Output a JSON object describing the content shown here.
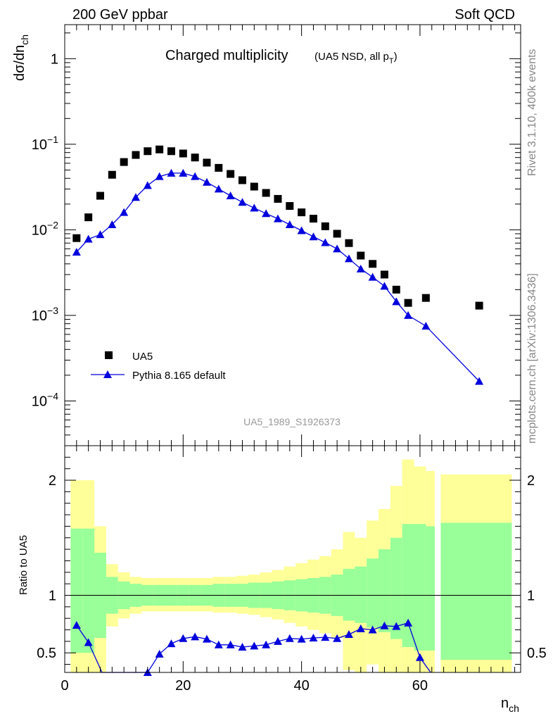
{
  "header": {
    "left": "200 GeV ppbar",
    "right": "Soft QCD"
  },
  "side": {
    "top": "Rivet 3.1.10,  400k events",
    "bottom": "mcplots.cern.ch [arXiv:1306.3436]"
  },
  "chart_data": [
    {
      "type": "scatter",
      "title": "Charged multiplicity",
      "subtitle_main": "(UA5 NSD, all p",
      "subtitle_sub": "T",
      "subtitle_end": ")",
      "ylabel_main": "dσ/dn",
      "ylabel_sub": "ch",
      "yscale": "log",
      "ylim": [
        3e-05,
        2.5
      ],
      "xlim": [
        0,
        77
      ],
      "yticks": [
        {
          "v": 1,
          "label": "1",
          "exp": ""
        },
        {
          "v": 0.1,
          "label": "10",
          "exp": "−1"
        },
        {
          "v": 0.01,
          "label": "10",
          "exp": "−2"
        },
        {
          "v": 0.001,
          "label": "10",
          "exp": "−3"
        },
        {
          "v": 0.0001,
          "label": "10",
          "exp": "−4"
        }
      ],
      "reference": "UA5_1989_S1926373",
      "legend": [
        {
          "name": "UA5",
          "marker": "square",
          "color": "#000000"
        },
        {
          "name": "Pythia 8.165 default",
          "marker": "triangle",
          "color": "#0000dd"
        }
      ],
      "series": [
        {
          "name": "UA5",
          "x": [
            2,
            4,
            6,
            8,
            10,
            12,
            14,
            16,
            18,
            20,
            22,
            24,
            26,
            28,
            30,
            32,
            34,
            36,
            38,
            40,
            42,
            44,
            46,
            48,
            50,
            52,
            54,
            56,
            58,
            61,
            70
          ],
          "y": [
            0.008,
            0.014,
            0.025,
            0.044,
            0.062,
            0.075,
            0.083,
            0.087,
            0.083,
            0.078,
            0.07,
            0.061,
            0.053,
            0.045,
            0.038,
            0.032,
            0.027,
            0.023,
            0.019,
            0.016,
            0.0135,
            0.011,
            0.009,
            0.007,
            0.005,
            0.004,
            0.003,
            0.002,
            0.0014,
            0.0016,
            0.0013
          ]
        },
        {
          "name": "Pythia 8.165 default",
          "x": [
            2,
            4,
            6,
            8,
            10,
            12,
            14,
            16,
            18,
            20,
            22,
            24,
            26,
            28,
            30,
            32,
            34,
            36,
            38,
            40,
            42,
            44,
            46,
            48,
            50,
            52,
            54,
            56,
            58,
            61,
            70
          ],
          "y": [
            0.0055,
            0.0078,
            0.0088,
            0.0115,
            0.016,
            0.024,
            0.033,
            0.042,
            0.046,
            0.046,
            0.042,
            0.036,
            0.03,
            0.025,
            0.021,
            0.018,
            0.0155,
            0.0135,
            0.0115,
            0.0098,
            0.0083,
            0.0071,
            0.006,
            0.0046,
            0.0035,
            0.0028,
            0.0022,
            0.00145,
            0.001,
            0.00075,
            0.00017
          ]
        }
      ]
    },
    {
      "type": "line",
      "ylabel": "Ratio to UA5",
      "xlabel_main": "n",
      "xlabel_sub": "ch",
      "xlim": [
        0,
        77
      ],
      "ylim": [
        0.33,
        2.3
      ],
      "yticks": [
        {
          "v": 0.5,
          "label": "0.5"
        },
        {
          "v": 1,
          "label": "1"
        },
        {
          "v": 2,
          "label": "2"
        }
      ],
      "xticks": [
        {
          "v": 0,
          "label": "0"
        },
        {
          "v": 20,
          "label": "20"
        },
        {
          "v": 40,
          "label": "40"
        },
        {
          "v": 60,
          "label": "60"
        }
      ],
      "bands": [
        {
          "x0": 1,
          "x1": 3,
          "g_lo": 0.5,
          "g_hi": 1.58,
          "y_lo": 0.33,
          "y_hi": 2.0
        },
        {
          "x0": 3,
          "x1": 5,
          "g_lo": 0.5,
          "g_hi": 1.58,
          "y_lo": 0.33,
          "y_hi": 2.0
        },
        {
          "x0": 5,
          "x1": 7,
          "g_lo": 0.63,
          "g_hi": 1.37,
          "y_lo": 0.33,
          "y_hi": 1.6
        },
        {
          "x0": 7,
          "x1": 9,
          "g_lo": 0.84,
          "g_hi": 1.16,
          "y_lo": 0.73,
          "y_hi": 1.27
        },
        {
          "x0": 9,
          "x1": 11,
          "g_lo": 0.88,
          "g_hi": 1.12,
          "y_lo": 0.8,
          "y_hi": 1.2
        },
        {
          "x0": 11,
          "x1": 13,
          "g_lo": 0.9,
          "g_hi": 1.1,
          "y_lo": 0.84,
          "y_hi": 1.16
        },
        {
          "x0": 13,
          "x1": 15,
          "g_lo": 0.91,
          "g_hi": 1.09,
          "y_lo": 0.86,
          "y_hi": 1.15
        },
        {
          "x0": 15,
          "x1": 17,
          "g_lo": 0.91,
          "g_hi": 1.09,
          "y_lo": 0.86,
          "y_hi": 1.15
        },
        {
          "x0": 17,
          "x1": 19,
          "g_lo": 0.91,
          "g_hi": 1.09,
          "y_lo": 0.86,
          "y_hi": 1.15
        },
        {
          "x0": 19,
          "x1": 21,
          "g_lo": 0.91,
          "g_hi": 1.09,
          "y_lo": 0.86,
          "y_hi": 1.15
        },
        {
          "x0": 21,
          "x1": 23,
          "g_lo": 0.91,
          "g_hi": 1.09,
          "y_lo": 0.86,
          "y_hi": 1.15
        },
        {
          "x0": 23,
          "x1": 25,
          "g_lo": 0.91,
          "g_hi": 1.09,
          "y_lo": 0.86,
          "y_hi": 1.15
        },
        {
          "x0": 25,
          "x1": 27,
          "g_lo": 0.9,
          "g_hi": 1.1,
          "y_lo": 0.85,
          "y_hi": 1.16
        },
        {
          "x0": 27,
          "x1": 29,
          "g_lo": 0.9,
          "g_hi": 1.1,
          "y_lo": 0.85,
          "y_hi": 1.16
        },
        {
          "x0": 29,
          "x1": 31,
          "g_lo": 0.9,
          "g_hi": 1.1,
          "y_lo": 0.84,
          "y_hi": 1.17
        },
        {
          "x0": 31,
          "x1": 33,
          "g_lo": 0.89,
          "g_hi": 1.11,
          "y_lo": 0.83,
          "y_hi": 1.18
        },
        {
          "x0": 33,
          "x1": 35,
          "g_lo": 0.89,
          "g_hi": 1.11,
          "y_lo": 0.81,
          "y_hi": 1.2
        },
        {
          "x0": 35,
          "x1": 37,
          "g_lo": 0.88,
          "g_hi": 1.12,
          "y_lo": 0.79,
          "y_hi": 1.22
        },
        {
          "x0": 37,
          "x1": 39,
          "g_lo": 0.87,
          "g_hi": 1.13,
          "y_lo": 0.76,
          "y_hi": 1.25
        },
        {
          "x0": 39,
          "x1": 41,
          "g_lo": 0.86,
          "g_hi": 1.14,
          "y_lo": 0.73,
          "y_hi": 1.28
        },
        {
          "x0": 41,
          "x1": 43,
          "g_lo": 0.85,
          "g_hi": 1.15,
          "y_lo": 0.7,
          "y_hi": 1.31
        },
        {
          "x0": 43,
          "x1": 45,
          "g_lo": 0.84,
          "g_hi": 1.16,
          "y_lo": 0.67,
          "y_hi": 1.34
        },
        {
          "x0": 45,
          "x1": 47,
          "g_lo": 0.82,
          "g_hi": 1.18,
          "y_lo": 0.63,
          "y_hi": 1.4
        },
        {
          "x0": 47,
          "x1": 49,
          "g_lo": 0.78,
          "g_hi": 1.23,
          "y_lo": 0.35,
          "y_hi": 1.55
        },
        {
          "x0": 49,
          "x1": 51,
          "g_lo": 0.76,
          "g_hi": 1.25,
          "y_lo": 0.33,
          "y_hi": 1.5
        },
        {
          "x0": 51,
          "x1": 53,
          "g_lo": 0.72,
          "g_hi": 1.32,
          "y_lo": 0.4,
          "y_hi": 1.65
        },
        {
          "x0": 53,
          "x1": 55,
          "g_lo": 0.68,
          "g_hi": 1.4,
          "y_lo": 0.33,
          "y_hi": 1.75
        },
        {
          "x0": 55,
          "x1": 57,
          "g_lo": 0.62,
          "g_hi": 1.5,
          "y_lo": 0.33,
          "y_hi": 1.95
        },
        {
          "x0": 57,
          "x1": 59,
          "g_lo": 0.55,
          "g_hi": 1.62,
          "y_lo": 0.33,
          "y_hi": 2.18
        },
        {
          "x0": 59,
          "x1": 61,
          "g_lo": 0.52,
          "g_hi": 1.62,
          "y_lo": 0.33,
          "y_hi": 2.12
        },
        {
          "x0": 61,
          "x1": 62.5,
          "g_lo": 0.52,
          "g_hi": 1.6,
          "y_lo": 0.33,
          "y_hi": 2.08
        },
        {
          "x0": 63.5,
          "x1": 75.5,
          "g_lo": 0.44,
          "g_hi": 1.63,
          "y_lo": 0.33,
          "y_hi": 2.05
        }
      ],
      "series": [
        {
          "name": "Pythia 8.165 default",
          "x": [
            2,
            4,
            6.3,
            14,
            16,
            18,
            20,
            22,
            24,
            26,
            28,
            30,
            32,
            34,
            36,
            38,
            40,
            42,
            44,
            46,
            48,
            50,
            52,
            54,
            56,
            58,
            60,
            61.8
          ],
          "y": [
            0.74,
            0.59,
            0.33,
            0.33,
            0.49,
            0.58,
            0.625,
            0.64,
            0.62,
            0.57,
            0.57,
            0.55,
            0.56,
            0.57,
            0.6,
            0.625,
            0.62,
            0.63,
            0.635,
            0.625,
            0.66,
            0.71,
            0.7,
            0.735,
            0.73,
            0.76,
            0.46,
            0.33
          ],
          "markers_x": [
            2,
            4,
            14,
            16,
            18,
            20,
            22,
            24,
            26,
            28,
            30,
            32,
            34,
            36,
            38,
            40,
            42,
            44,
            46,
            48,
            50,
            52,
            54,
            56,
            58,
            60
          ],
          "markers_y": [
            0.74,
            0.59,
            0.33,
            0.49,
            0.58,
            0.625,
            0.64,
            0.62,
            0.57,
            0.57,
            0.55,
            0.56,
            0.57,
            0.6,
            0.625,
            0.62,
            0.63,
            0.635,
            0.625,
            0.66,
            0.71,
            0.7,
            0.735,
            0.73,
            0.76,
            0.46
          ]
        }
      ]
    }
  ],
  "colors": {
    "green": "#99ff99",
    "yellow": "#ffff99",
    "mc": "#0000dd",
    "data": "#000000"
  }
}
